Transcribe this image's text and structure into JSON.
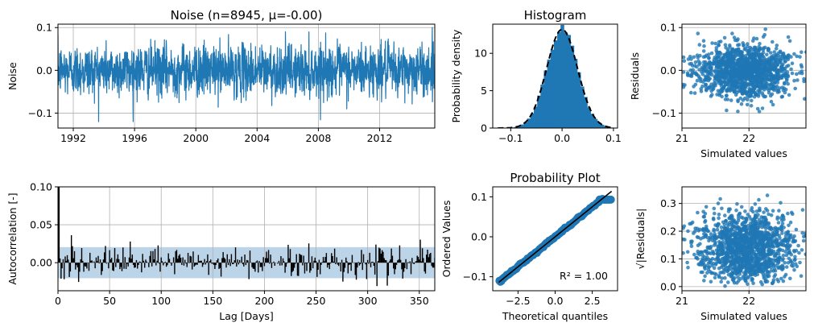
{
  "colors": {
    "series": "#1f77b4",
    "band": "#bcd4e8",
    "black": "#000000",
    "grid": "#b0b0b0"
  },
  "chart_data": [
    {
      "type": "line",
      "title": "Noise (n=8945, μ=-0.00)",
      "ylabel": "Noise",
      "xlabel": "",
      "grid": true,
      "xlim": [
        1991.0,
        2015.6
      ],
      "ylim": [
        -0.135,
        0.108
      ],
      "x_ticks": [
        1992,
        1996,
        2000,
        2004,
        2008,
        2012
      ],
      "x_tick_labels": [
        "1992",
        "1996",
        "2000",
        "2004",
        "2008",
        "2012"
      ],
      "y_ticks": [
        -0.1,
        0.0,
        0.1
      ],
      "y_tick_labels": [
        "−0.1",
        "0.0",
        "0.1"
      ],
      "series": [
        {
          "n": 8945,
          "mean": -0.0,
          "std": 0.03,
          "min": -0.12,
          "max": 0.1
        }
      ]
    },
    {
      "type": "bar",
      "title": "Histogram",
      "ylabel": "Probability density",
      "xlabel": "",
      "grid": false,
      "xlim": [
        -0.135,
        0.108
      ],
      "ylim": [
        0,
        13.9
      ],
      "x_ticks": [
        -0.1,
        0.0,
        0.1
      ],
      "x_tick_labels": [
        "−0.1",
        "0.0",
        "0.1"
      ],
      "y_ticks": [
        0,
        5,
        10
      ],
      "y_tick_labels": [
        "0",
        "5",
        "10"
      ],
      "fitted_density": {
        "style": "dashed",
        "mean": 0.0,
        "std": 0.03,
        "peak": 13.2
      }
    },
    {
      "type": "scatter",
      "title": "",
      "ylabel": "Residuals",
      "xlabel": "Simulated values",
      "grid": true,
      "xlim": [
        21.0,
        22.85
      ],
      "ylim": [
        -0.135,
        0.108
      ],
      "x_ticks": [
        21,
        22
      ],
      "x_tick_labels": [
        "21",
        "22"
      ],
      "y_ticks": [
        -0.1,
        0.0,
        0.1
      ],
      "y_tick_labels": [
        "−0.1",
        "0.0",
        "0.1"
      ],
      "points": {
        "x_mean": 21.95,
        "x_std": 0.35,
        "y_mean": 0.0,
        "y_std": 0.03
      }
    },
    {
      "type": "bar",
      "title": "",
      "ylabel": "Autocorrelation [-]",
      "xlabel": "Lag [Days]",
      "grid": true,
      "xlim": [
        0,
        365
      ],
      "ylim": [
        -0.037,
        0.1
      ],
      "x_ticks": [
        0,
        50,
        100,
        150,
        200,
        250,
        300,
        350
      ],
      "x_tick_labels": [
        "0",
        "50",
        "100",
        "150",
        "200",
        "250",
        "300",
        "350"
      ],
      "y_ticks": [
        0.0,
        0.05,
        0.1
      ],
      "y_tick_labels": [
        "0.00",
        "0.05",
        "0.10"
      ],
      "confidence_band": [
        -0.0205,
        0.0205
      ],
      "lag1_value": 0.1
    },
    {
      "type": "scatter",
      "title": "Probability Plot",
      "ylabel": "Ordered Values",
      "xlabel": "Theoretical quantiles",
      "grid": false,
      "xlim": [
        -4.2,
        4.2
      ],
      "ylim": [
        -0.135,
        0.125
      ],
      "x_ticks": [
        -2.5,
        0.0,
        2.5
      ],
      "x_tick_labels": [
        "−2.5",
        "0.0",
        "2.5"
      ],
      "y_ticks": [
        -0.1,
        0.0,
        0.1
      ],
      "y_tick_labels": [
        "−0.1",
        "0.0",
        "0.1"
      ],
      "annotation": "R² = 1.00",
      "fit_line": {
        "slope": 0.03,
        "intercept": 0.0
      }
    },
    {
      "type": "scatter",
      "title": "",
      "ylabel": "√|Residuals|",
      "xlabel": "Simulated values",
      "grid": true,
      "xlim": [
        21.0,
        22.85
      ],
      "ylim": [
        -0.015,
        0.36
      ],
      "x_ticks": [
        21,
        22
      ],
      "x_tick_labels": [
        "21",
        "22"
      ],
      "y_ticks": [
        0.0,
        0.1,
        0.2,
        0.3
      ],
      "y_tick_labels": [
        "0.0",
        "0.1",
        "0.2",
        "0.3"
      ],
      "points": {
        "x_mean": 21.95,
        "x_std": 0.35
      }
    }
  ]
}
